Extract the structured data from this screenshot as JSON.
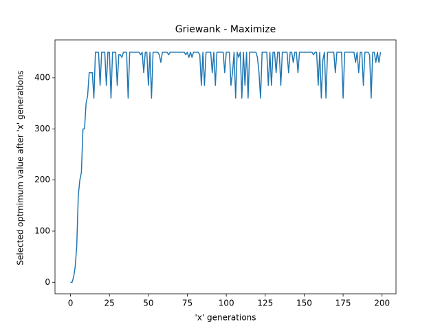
{
  "chart_data": {
    "type": "line",
    "title": "Griewank - Maximize",
    "xlabel": "'x' generations",
    "ylabel": "Selected optmimum value after 'x' generations",
    "x": [
      0,
      1,
      2,
      3,
      4,
      5,
      6,
      7,
      8,
      9,
      10,
      11,
      12,
      13,
      14,
      15,
      16,
      17,
      18,
      19,
      20,
      21,
      22,
      23,
      24,
      25,
      26,
      27,
      28,
      29,
      30,
      31,
      32,
      33,
      34,
      35,
      36,
      37,
      38,
      39,
      40,
      41,
      42,
      43,
      44,
      45,
      46,
      47,
      48,
      49,
      50,
      51,
      52,
      53,
      54,
      55,
      56,
      57,
      58,
      59,
      60,
      61,
      62,
      63,
      64,
      65,
      66,
      67,
      68,
      69,
      70,
      71,
      72,
      73,
      74,
      75,
      76,
      77,
      78,
      79,
      80,
      81,
      82,
      83,
      84,
      85,
      86,
      87,
      88,
      89,
      90,
      91,
      92,
      93,
      94,
      95,
      96,
      97,
      98,
      99,
      100,
      101,
      102,
      103,
      104,
      105,
      106,
      107,
      108,
      109,
      110,
      111,
      112,
      113,
      114,
      115,
      116,
      117,
      118,
      119,
      120,
      121,
      122,
      123,
      124,
      125,
      126,
      127,
      128,
      129,
      130,
      131,
      132,
      133,
      134,
      135,
      136,
      137,
      138,
      139,
      140,
      141,
      142,
      143,
      144,
      145,
      146,
      147,
      148,
      149,
      150,
      151,
      152,
      153,
      154,
      155,
      156,
      157,
      158,
      159,
      160,
      161,
      162,
      163,
      164,
      165,
      166,
      167,
      168,
      169,
      170,
      171,
      172,
      173,
      174,
      175,
      176,
      177,
      178,
      179,
      180,
      181,
      182,
      183,
      184,
      185,
      186,
      187,
      188,
      189,
      190,
      191,
      192,
      193,
      194,
      195,
      196,
      197,
      198,
      199
    ],
    "series": [
      {
        "color": "#1f77b4",
        "values": [
          0,
          0,
          10,
          30,
          70,
          170,
          200,
          215,
          300,
          300,
          350,
          365,
          410,
          410,
          410,
          360,
          450,
          450,
          450,
          385,
          450,
          450,
          450,
          385,
          450,
          450,
          360,
          450,
          450,
          450,
          385,
          445,
          445,
          440,
          450,
          450,
          450,
          360,
          450,
          450,
          450,
          450,
          450,
          450,
          450,
          445,
          450,
          410,
          450,
          450,
          385,
          450,
          360,
          450,
          450,
          450,
          450,
          445,
          430,
          450,
          450,
          450,
          450,
          445,
          450,
          450,
          450,
          450,
          450,
          450,
          450,
          450,
          450,
          450,
          445,
          450,
          440,
          450,
          440,
          450,
          450,
          450,
          450,
          445,
          385,
          450,
          385,
          450,
          450,
          450,
          450,
          410,
          450,
          385,
          450,
          450,
          450,
          450,
          450,
          410,
          450,
          450,
          450,
          385,
          410,
          450,
          360,
          450,
          440,
          450,
          360,
          450,
          385,
          450,
          360,
          450,
          450,
          450,
          450,
          450,
          440,
          410,
          360,
          450,
          450,
          450,
          450,
          385,
          450,
          385,
          450,
          450,
          410,
          450,
          450,
          385,
          450,
          450,
          450,
          450,
          410,
          450,
          450,
          430,
          450,
          450,
          410,
          450,
          450,
          450,
          450,
          450,
          450,
          450,
          450,
          450,
          445,
          450,
          450,
          385,
          450,
          360,
          435,
          450,
          360,
          450,
          450,
          450,
          450,
          450,
          410,
          450,
          450,
          450,
          450,
          360,
          450,
          450,
          450,
          450,
          450,
          450,
          450,
          430,
          450,
          410,
          450,
          450,
          385,
          450,
          450,
          450,
          445,
          360,
          450,
          450,
          430,
          450,
          430,
          450
        ]
      }
    ],
    "xlim": [
      -9.95,
      208.95
    ],
    "ylim": [
      -22.5,
      474
    ],
    "xticks": [
      0,
      25,
      50,
      75,
      100,
      125,
      150,
      175,
      200
    ],
    "yticks": [
      0,
      100,
      200,
      300,
      400
    ],
    "grid": false
  }
}
